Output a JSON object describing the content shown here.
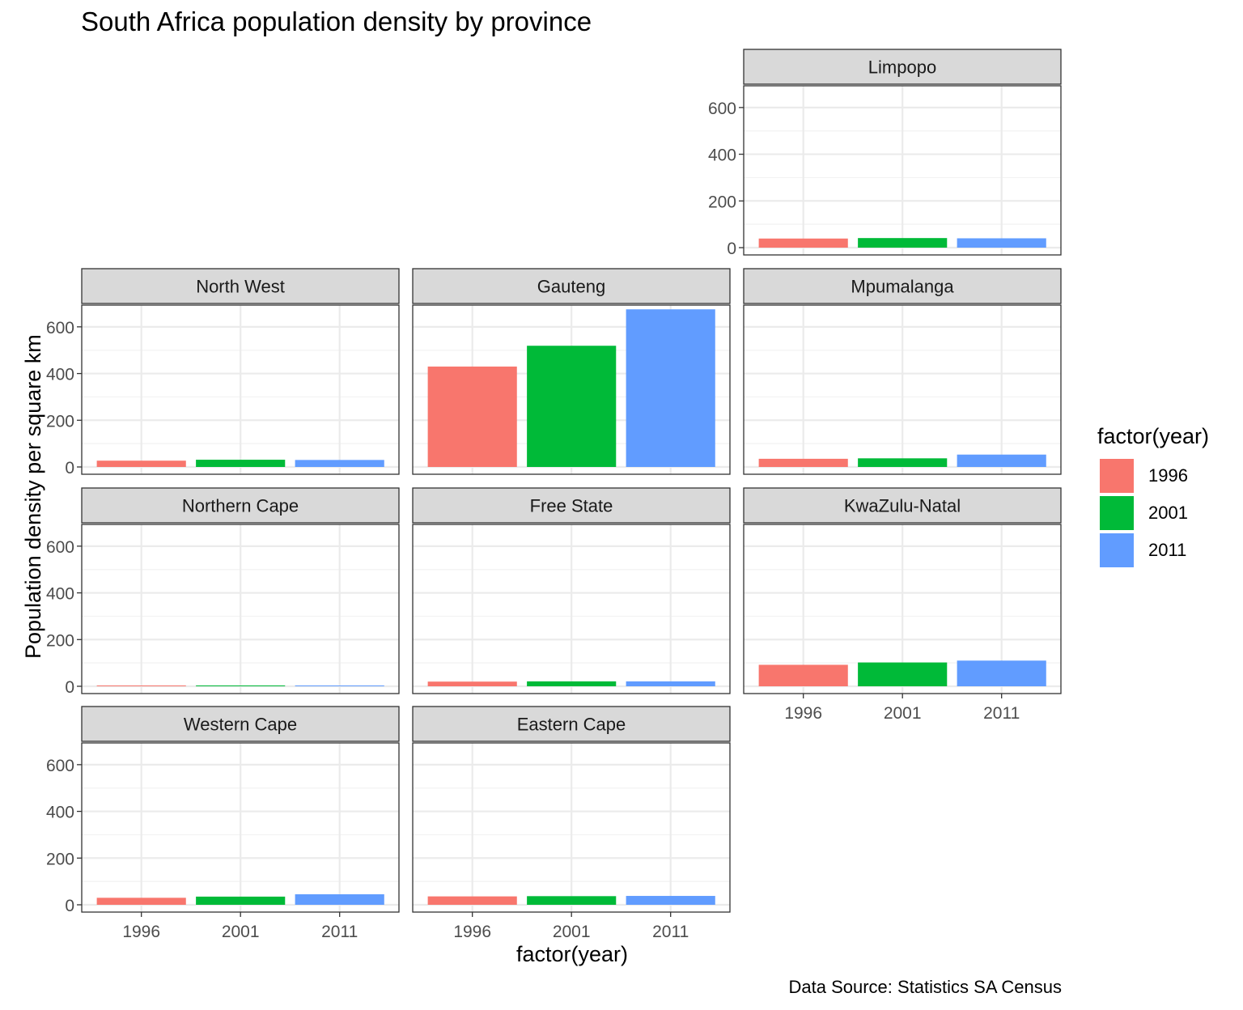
{
  "chart_data": {
    "type": "bar",
    "title": "South Africa population density by province",
    "xlabel": "factor(year)",
    "ylabel": "Population density per square km",
    "caption": "Data Source: Statistics SA Census",
    "categories": [
      "1996",
      "2001",
      "2011"
    ],
    "ylim": [
      0,
      700
    ],
    "yticks": [
      0,
      200,
      400,
      600
    ],
    "grid": true,
    "legend": {
      "title": "factor(year)",
      "position": "right",
      "items": [
        {
          "label": "1996",
          "color": "#F8766D"
        },
        {
          "label": "2001",
          "color": "#00BA38"
        },
        {
          "label": "2011",
          "color": "#619CFF"
        }
      ]
    },
    "panels": [
      {
        "name": "Limpopo",
        "values": [
          39,
          41,
          40
        ]
      },
      {
        "name": "North West",
        "values": [
          27,
          31,
          30
        ]
      },
      {
        "name": "Gauteng",
        "values": [
          430,
          519,
          675
        ]
      },
      {
        "name": "Mpumalanga",
        "values": [
          35,
          37,
          53
        ]
      },
      {
        "name": "Northern Cape",
        "values": [
          2,
          2,
          3
        ]
      },
      {
        "name": "Free State",
        "values": [
          20,
          21,
          21
        ]
      },
      {
        "name": "KwaZulu-Natal",
        "values": [
          92,
          102,
          110
        ]
      },
      {
        "name": "Western Cape",
        "values": [
          30,
          35,
          45
        ]
      },
      {
        "name": "Eastern Cape",
        "values": [
          36,
          37,
          38
        ]
      }
    ]
  }
}
